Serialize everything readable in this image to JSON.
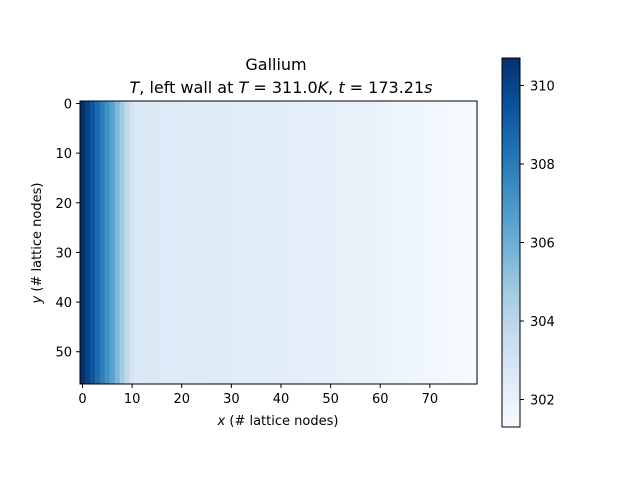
{
  "chart_data": {
    "type": "heatmap",
    "title": "Gallium",
    "subtitle_parts": {
      "var": "T",
      "mid": ", left wall at ",
      "tvar": "T",
      "tval": " = 311.0",
      "tunit": "K",
      "sep": ", ",
      "timevar": "t",
      "timeval": " = 173.21",
      "timeunit": "s"
    },
    "xlabel_var": "x",
    "xlabel_text": " (# lattice nodes)",
    "ylabel_var": "y",
    "ylabel_text": " (# lattice nodes)",
    "nx": 80,
    "ny": 57,
    "xlim": [
      -0.5,
      79.5
    ],
    "ylim": [
      56.5,
      -0.5
    ],
    "xticks": [
      0,
      10,
      20,
      30,
      40,
      50,
      60,
      70
    ],
    "yticks": [
      0,
      10,
      20,
      30,
      40,
      50
    ],
    "colormap": "Blues",
    "vmin": 301.3,
    "vmax": 310.7,
    "colorbar_ticks": [
      302,
      304,
      306,
      308,
      310
    ],
    "column_profile": {
      "x": [
        0,
        1,
        2,
        3,
        4,
        5,
        6,
        7,
        8,
        9,
        10,
        11,
        15,
        20,
        30,
        40,
        50,
        60,
        70,
        79
      ],
      "T": [
        310.7,
        310.0,
        309.3,
        308.6,
        307.9,
        307.2,
        306.5,
        305.6,
        304.7,
        303.8,
        302.9,
        302.6,
        302.55,
        302.5,
        302.4,
        302.3,
        302.1,
        301.9,
        301.6,
        301.3
      ]
    }
  }
}
